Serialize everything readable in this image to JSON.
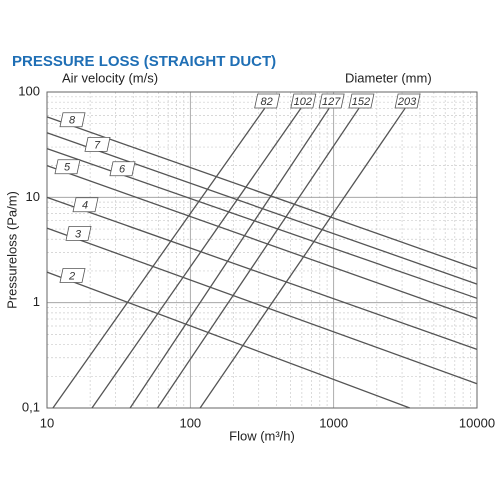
{
  "chart_data": {
    "type": "line",
    "title": "PRESSURE LOSS (STRAIGHT DUCT)",
    "velocity_label": "Air velocity (m/s)",
    "diameter_label": "Diameter (mm)",
    "x_label": "Flow (m³/h)",
    "y_label": "Pressureloss (Pa/m)",
    "log_x": true,
    "log_y": true,
    "grid": true,
    "xlim": [
      10,
      10000
    ],
    "ylim": [
      0.1,
      100
    ],
    "xticks": [
      10,
      100,
      1000,
      10000
    ],
    "yticks": [
      {
        "value": 0.1,
        "label": "0,1"
      },
      1,
      10,
      100
    ],
    "series": [
      {
        "name": "82",
        "color": "#555555",
        "x": [
          11,
          330
        ],
        "values": [
          0.1,
          70
        ]
      },
      {
        "name": "102",
        "color": "#555555",
        "x": [
          20.6,
          590
        ],
        "values": [
          0.1,
          70
        ]
      },
      {
        "name": "127",
        "color": "#555555",
        "x": [
          38,
          930
        ],
        "values": [
          0.1,
          70
        ]
      },
      {
        "name": "152",
        "color": "#555555",
        "x": [
          59,
          1500
        ],
        "values": [
          0.1,
          70
        ]
      },
      {
        "name": "203",
        "color": "#555555",
        "x": [
          117,
          3150
        ],
        "values": [
          0.1,
          70
        ]
      },
      {
        "name": "8",
        "color": "#555555",
        "x": [
          10,
          10000
        ],
        "values": [
          58,
          2.1
        ]
      },
      {
        "name": "7",
        "color": "#555555",
        "x": [
          10,
          10000
        ],
        "values": [
          41,
          1.5
        ]
      },
      {
        "name": "6",
        "color": "#555555",
        "x": [
          10,
          10000
        ],
        "values": [
          29,
          1.1
        ]
      },
      {
        "name": "5",
        "color": "#555555",
        "x": [
          10,
          10000
        ],
        "values": [
          20,
          0.71
        ]
      },
      {
        "name": "4",
        "color": "#555555",
        "x": [
          10,
          10000
        ],
        "values": [
          10,
          0.36
        ]
      },
      {
        "name": "3",
        "color": "#555555",
        "x": [
          10,
          10000
        ],
        "values": [
          5.1,
          0.17
        ]
      },
      {
        "name": "2",
        "color": "#555555",
        "x": [
          10,
          3400
        ],
        "values": [
          1.95,
          0.1
        ]
      }
    ]
  }
}
